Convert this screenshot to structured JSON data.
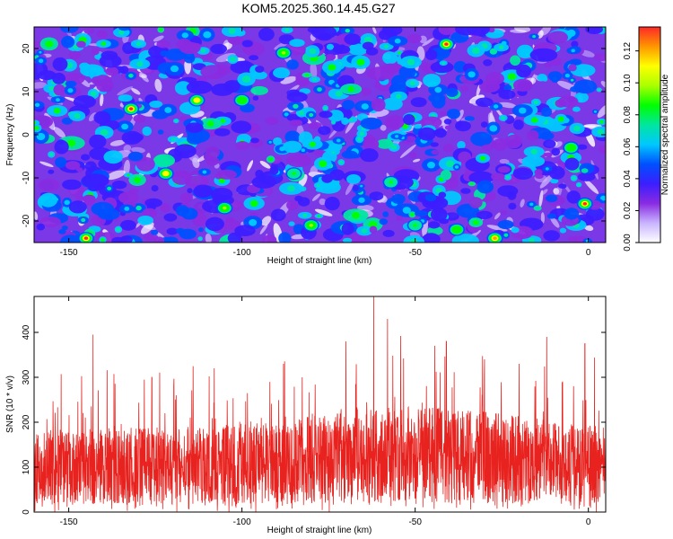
{
  "title": "KOM5.2025.360.14.45.G27",
  "chart_data": [
    {
      "type": "heatmap",
      "xlabel": "Height of straight line (km)",
      "ylabel": "Frequency (Hz)",
      "xlim": [
        -160,
        5
      ],
      "ylim": [
        -25,
        25
      ],
      "xticks": [
        -150,
        -100,
        -50,
        0
      ],
      "yticks": [
        -20,
        -10,
        0,
        10,
        20
      ],
      "colorbar": {
        "label": "Normalized spectral amplitude",
        "range": [
          0.0,
          0.135
        ],
        "ticks": [
          "0.00",
          "0.02",
          "0.04",
          "0.06",
          "0.08",
          "0.10",
          "0.12"
        ],
        "colors": [
          "#ffffff",
          "#c8b4ff",
          "#8a2be2",
          "#3c1eff",
          "#0050ff",
          "#00c8ff",
          "#00e6a0",
          "#00ff00",
          "#aaff00",
          "#ffff00",
          "#ff9600",
          "#ff2828"
        ]
      },
      "hotspots": [
        {
          "x": -132,
          "y": 6,
          "v": 0.13
        },
        {
          "x": -145,
          "y": -24,
          "v": 0.13
        },
        {
          "x": -41,
          "y": 21,
          "v": 0.13
        },
        {
          "x": -1,
          "y": -16,
          "v": 0.13
        },
        {
          "x": -27,
          "y": -24,
          "v": 0.12
        },
        {
          "x": -122,
          "y": -9,
          "v": 0.11
        },
        {
          "x": -113,
          "y": 8,
          "v": 0.11
        },
        {
          "x": -88,
          "y": 19,
          "v": 0.1
        },
        {
          "x": -105,
          "y": -17,
          "v": 0.1
        },
        {
          "x": -80,
          "y": -21,
          "v": 0.1
        },
        {
          "x": -38,
          "y": -22,
          "v": 0.09
        },
        {
          "x": -5,
          "y": -3,
          "v": 0.09
        },
        {
          "x": -100,
          "y": 8,
          "v": 0.09
        },
        {
          "x": -85,
          "y": -9,
          "v": 0.08
        },
        {
          "x": -50,
          "y": -21,
          "v": 0.08
        },
        {
          "x": -57,
          "y": -11,
          "v": 0.08
        }
      ]
    },
    {
      "type": "line",
      "xlabel": "Height of straight line (km)",
      "ylabel": "SNR (10 * v/v)",
      "xlim": [
        -160,
        5
      ],
      "ylim": [
        0,
        480
      ],
      "xticks": [
        -150,
        -100,
        -50,
        0
      ],
      "yticks": [
        0,
        100,
        200,
        300,
        400
      ],
      "series": [
        {
          "name": "SNR",
          "color": "#e8231f",
          "baseline_mean": 110,
          "peaks": [
            {
              "x": -143,
              "y": 395
            },
            {
              "x": -62,
              "y": 480
            },
            {
              "x": -58,
              "y": 430
            },
            {
              "x": -70,
              "y": 380
            },
            {
              "x": -41,
              "y": 380
            },
            {
              "x": -12,
              "y": 390
            },
            {
              "x": -1,
              "y": 375
            },
            {
              "x": -108,
              "y": 320
            },
            {
              "x": -88,
              "y": 330
            },
            {
              "x": -30,
              "y": 340
            },
            {
              "x": -126,
              "y": 300
            },
            {
              "x": -20,
              "y": 330
            }
          ]
        }
      ]
    }
  ]
}
